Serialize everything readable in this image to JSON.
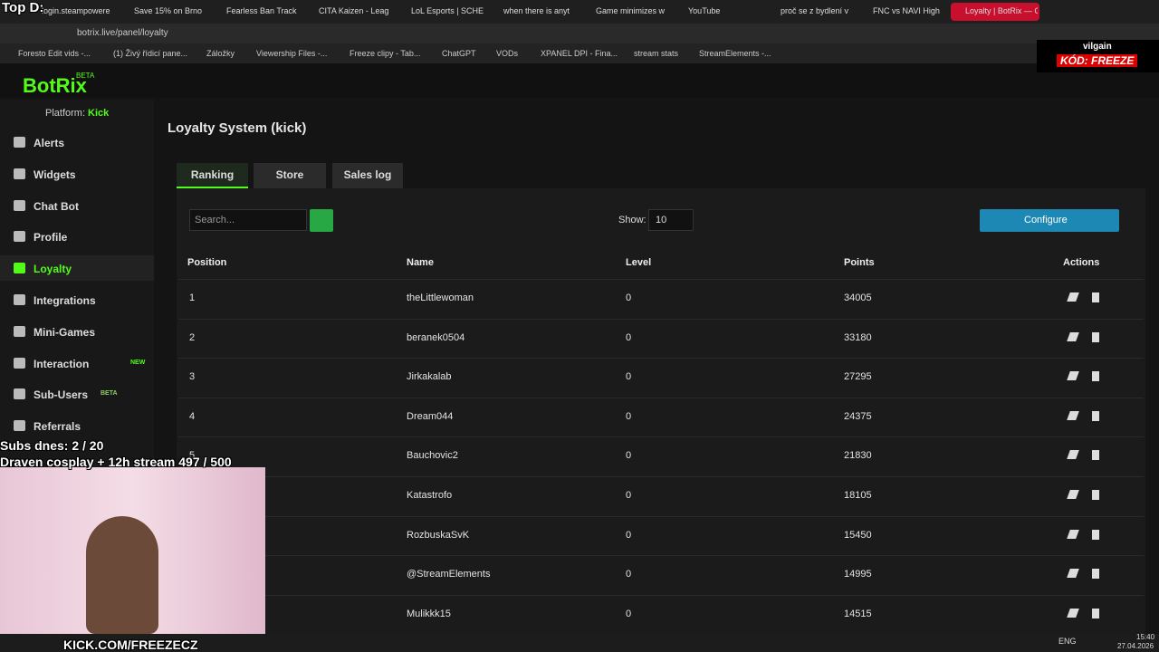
{
  "overlay": {
    "top_label": "Top D:",
    "subs": "Subs dnes: 2 / 20",
    "goal": "Draven cosplay + 12h stream 497 / 500",
    "channel": "KICK.COM/FREEZECZ",
    "sponsor": "vilgain",
    "code": "KÓD: FREEZE"
  },
  "browser": {
    "tabs": [
      "login.steampowere",
      "Save 15% on Brno",
      "Fearless Ban Track",
      "CITA Kaizen - Leag",
      "LoL Esports | SCHE",
      "when there is anyt",
      "Game minimizes w",
      "YouTube",
      "proč se z bydlení v",
      "FNC vs NAVI High",
      "Loyalty | BotRix — Cloud"
    ],
    "url": "botrix.live/panel/loyalty",
    "bookmarks": [
      "Foresto Edit vids -...",
      "(1) Živý řídicí pane...",
      "Záložky",
      "Viewership Files -...",
      "Freeze clipy - Tab...",
      "ChatGPT",
      "VODs",
      "XPANEL DPI - Fina...",
      "stream stats",
      "StreamElements -..."
    ]
  },
  "sidebar": {
    "logo": "BotRix",
    "logo_badge": "BETA",
    "platform_label": "Platform:",
    "platform": "Kick",
    "items": [
      {
        "label": "Alerts"
      },
      {
        "label": "Widgets"
      },
      {
        "label": "Chat Bot"
      },
      {
        "label": "Profile"
      },
      {
        "label": "Loyalty"
      },
      {
        "label": "Integrations"
      },
      {
        "label": "Mini-Games"
      },
      {
        "label": "Interaction",
        "badge": "NEW"
      },
      {
        "label": "Sub-Users",
        "badge": "BETA"
      },
      {
        "label": "Referrals"
      }
    ]
  },
  "main": {
    "title": "Loyalty System (kick)",
    "tabs": [
      "Ranking",
      "Store",
      "Sales log"
    ],
    "search_placeholder": "Search...",
    "show_label": "Show:",
    "show_value": "10",
    "configure": "Configure",
    "table": {
      "columns": [
        "Position",
        "Name",
        "Level",
        "Points",
        "Actions"
      ],
      "rows": [
        {
          "position": "1",
          "name": "theLittlewoman",
          "level": "0",
          "points": "34005"
        },
        {
          "position": "2",
          "name": "beranek0504",
          "level": "0",
          "points": "33180"
        },
        {
          "position": "3",
          "name": "Jirkakalab",
          "level": "0",
          "points": "27295"
        },
        {
          "position": "4",
          "name": "Dream044",
          "level": "0",
          "points": "24375"
        },
        {
          "position": "5",
          "name": "Bauchovic2",
          "level": "0",
          "points": "21830"
        },
        {
          "name": "Katastrofo",
          "level": "0",
          "points": "18105"
        },
        {
          "name": "RozbuskaSvK",
          "level": "0",
          "points": "15450"
        },
        {
          "name": "@StreamElements",
          "level": "0",
          "points": "14995"
        },
        {
          "name": "Mulikkk15",
          "level": "0",
          "points": "14515"
        }
      ]
    }
  },
  "taskbar": {
    "lang": "ENG",
    "time": "15:40",
    "date": "27.04.2026"
  }
}
